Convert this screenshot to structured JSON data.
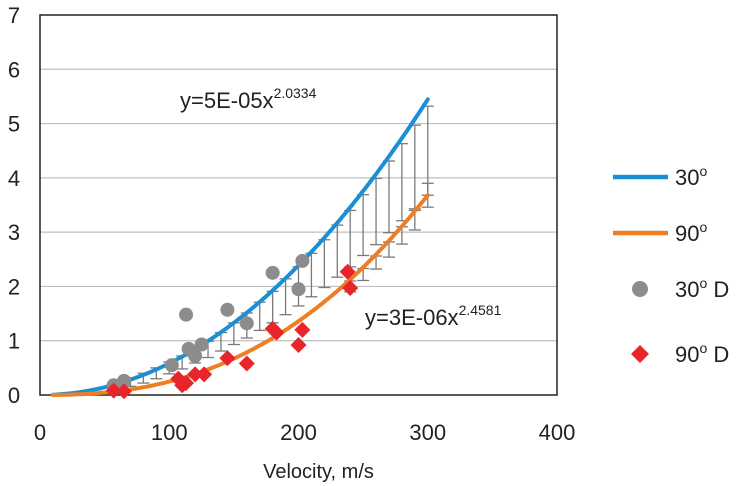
{
  "chart_data": {
    "type": "scatter",
    "title": "",
    "xlabel": "Velocity, m/s",
    "ylabel": "",
    "xlim": [
      0,
      400
    ],
    "ylim": [
      0,
      7
    ],
    "x_ticks": [
      0,
      100,
      200,
      300,
      400
    ],
    "y_ticks": [
      0,
      1,
      2,
      3,
      4,
      5,
      6,
      7
    ],
    "grid": "horizontal",
    "legend_position": "right",
    "colors": {
      "fit_30": "#1a8fd6",
      "fit_90": "#ef7d22",
      "data_30": "#8c8c8c",
      "data_90": "#e8252b",
      "errorbar": "#7a7a7a",
      "grid": "#bfbfbf"
    },
    "series": [
      {
        "name": "30o",
        "kind": "fit-line",
        "equation_label": "y=5E-05x",
        "equation_exponent": "2.0334",
        "coefficient": 5e-05,
        "exponent": 2.0334,
        "x_range": [
          10,
          300
        ]
      },
      {
        "name": "90o",
        "kind": "fit-line",
        "equation_label": "y=3E-06x",
        "equation_exponent": "2.4581",
        "coefficient": 3e-06,
        "exponent": 2.4581,
        "x_range": [
          10,
          300
        ]
      },
      {
        "name": "30o D",
        "kind": "points",
        "marker": "circle",
        "points": [
          [
            57,
            0.18
          ],
          [
            65,
            0.26
          ],
          [
            102,
            0.55
          ],
          [
            113,
            1.48
          ],
          [
            115,
            0.85
          ],
          [
            120,
            0.72
          ],
          [
            125,
            0.93
          ],
          [
            145,
            1.57
          ],
          [
            160,
            1.32
          ],
          [
            180,
            2.25
          ],
          [
            200,
            1.95
          ],
          [
            203,
            2.47
          ]
        ]
      },
      {
        "name": "90o D",
        "kind": "points",
        "marker": "diamond",
        "points": [
          [
            57,
            0.08
          ],
          [
            65,
            0.07
          ],
          [
            107,
            0.3
          ],
          [
            110,
            0.18
          ],
          [
            113,
            0.22
          ],
          [
            120,
            0.38
          ],
          [
            127,
            0.38
          ],
          [
            145,
            0.68
          ],
          [
            160,
            0.58
          ],
          [
            180,
            1.22
          ],
          [
            183,
            1.15
          ],
          [
            200,
            0.92
          ],
          [
            203,
            1.2
          ],
          [
            238,
            2.27
          ],
          [
            240,
            1.97
          ]
        ]
      }
    ],
    "error_bars": [
      {
        "x": 60,
        "y": 0.18,
        "err": 0.06
      },
      {
        "x": 70,
        "y": 0.24,
        "err": 0.08
      },
      {
        "x": 80,
        "y": 0.31,
        "err": 0.09
      },
      {
        "x": 90,
        "y": 0.4,
        "err": 0.1
      },
      {
        "x": 100,
        "y": 0.5,
        "err": 0.11
      },
      {
        "x": 110,
        "y": 0.6,
        "err": 0.12
      },
      {
        "x": 120,
        "y": 0.72,
        "err": 0.13
      },
      {
        "x": 130,
        "y": 0.84,
        "err": 0.15
      },
      {
        "x": 140,
        "y": 0.98,
        "err": 0.17
      },
      {
        "x": 150,
        "y": 1.13,
        "err": 0.2
      },
      {
        "x": 160,
        "y": 1.28,
        "err": 0.23
      },
      {
        "x": 170,
        "y": 1.45,
        "err": 0.26
      },
      {
        "x": 180,
        "y": 1.62,
        "err": 0.29
      },
      {
        "x": 190,
        "y": 1.81,
        "err": 0.33
      },
      {
        "x": 200,
        "y": 2.0,
        "err": 0.36
      },
      {
        "x": 210,
        "y": 2.21,
        "err": 0.4
      },
      {
        "x": 220,
        "y": 2.42,
        "err": 0.44
      },
      {
        "x": 230,
        "y": 2.65,
        "err": 0.48
      },
      {
        "x": 240,
        "y": 2.88,
        "err": 0.52
      },
      {
        "x": 250,
        "y": 3.13,
        "err": 0.56
      },
      {
        "x": 260,
        "y": 3.38,
        "err": 0.61
      },
      {
        "x": 270,
        "y": 3.65,
        "err": 0.66
      },
      {
        "x": 280,
        "y": 3.92,
        "err": 0.71
      },
      {
        "x": 290,
        "y": 4.2,
        "err": 0.77
      },
      {
        "x": 300,
        "y": 4.5,
        "err": 0.82
      },
      {
        "x": 240,
        "y": 2.0,
        "err": 0.1
      },
      {
        "x": 250,
        "y": 2.22,
        "err": 0.11
      },
      {
        "x": 260,
        "y": 2.44,
        "err": 0.12
      },
      {
        "x": 270,
        "y": 2.68,
        "err": 0.14
      },
      {
        "x": 280,
        "y": 2.94,
        "err": 0.16
      },
      {
        "x": 290,
        "y": 3.22,
        "err": 0.18
      },
      {
        "x": 300,
        "y": 3.68,
        "err": 0.22
      }
    ],
    "legend": [
      {
        "label": "30",
        "sup": "o",
        "suffix": "",
        "series": "30o"
      },
      {
        "label": "90",
        "sup": "o",
        "suffix": "",
        "series": "90o"
      },
      {
        "label": "30",
        "sup": "o",
        "suffix": " D",
        "series": "30o D"
      },
      {
        "label": "90",
        "sup": "o",
        "suffix": " D",
        "series": "90o D"
      }
    ]
  }
}
